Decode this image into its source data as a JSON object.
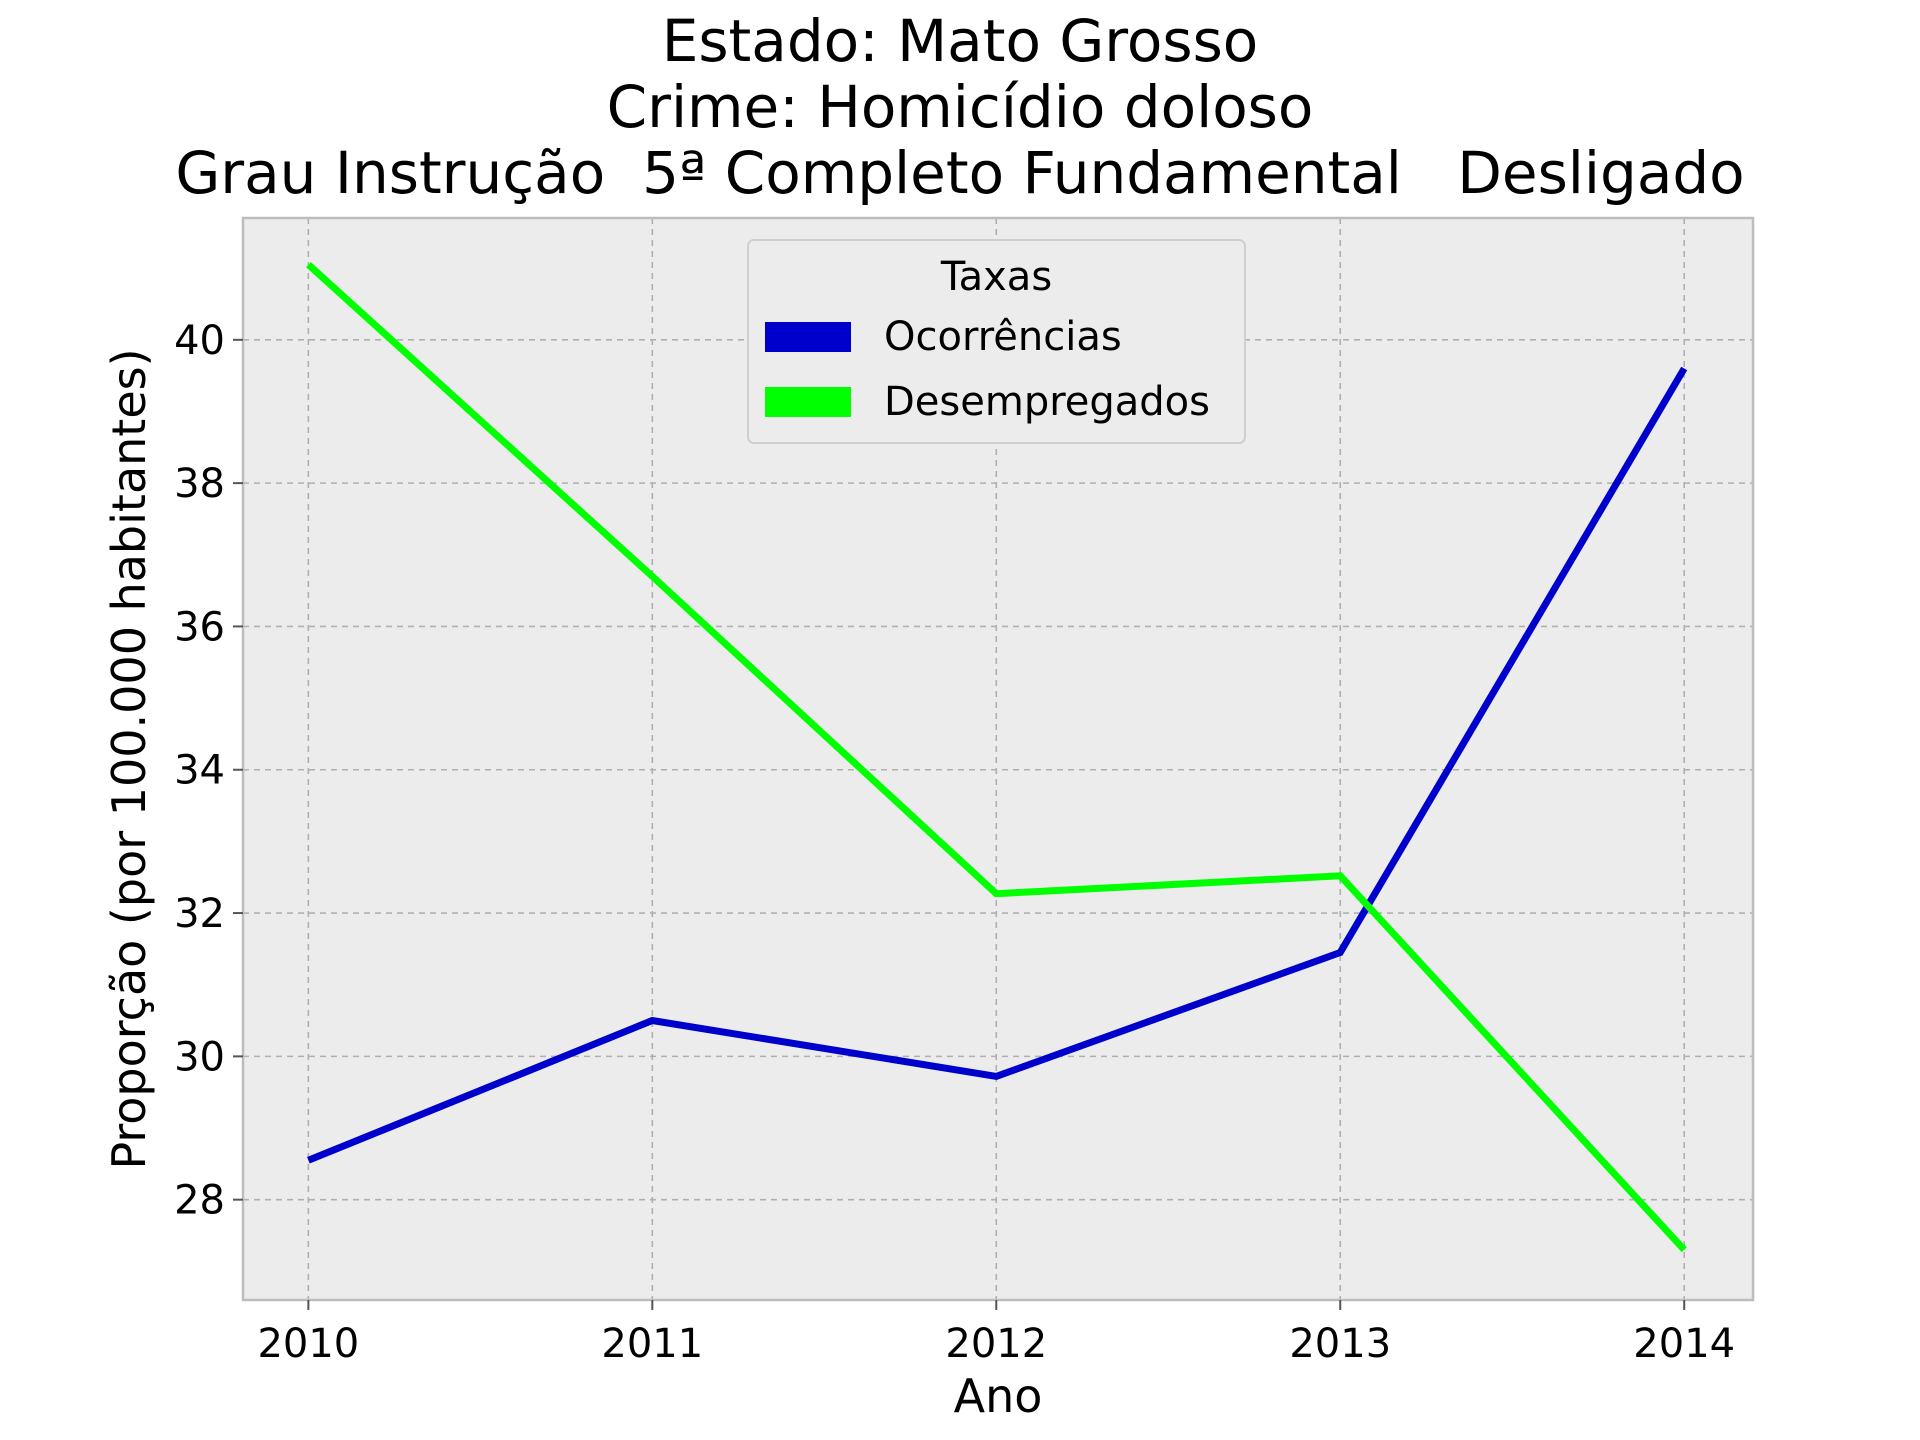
{
  "chart_data": {
    "type": "line",
    "title_lines": [
      "Estado: Mato Grosso",
      "Crime: Homicídio doloso",
      "Grau Instrução  5ª Completo Fundamental   Desligado"
    ],
    "xlabel": "Ano",
    "ylabel": "Proporção (por 100.000 habitantes)",
    "x": [
      2010,
      2011,
      2012,
      2013,
      2014
    ],
    "x_tick_labels": [
      "2010",
      "2011",
      "2012",
      "2013",
      "2014"
    ],
    "xlim": [
      2009.81,
      2014.2
    ],
    "y_ticks": [
      28,
      30,
      32,
      34,
      36,
      38,
      40
    ],
    "y_tick_labels": [
      "28",
      "30",
      "32",
      "34",
      "36",
      "38",
      "40"
    ],
    "ylim": [
      26.6,
      41.7
    ],
    "grid": true,
    "legend": {
      "title": "Taxas",
      "placement": "top-center"
    },
    "series": [
      {
        "name": "Ocorrências",
        "color": "#0000cc",
        "values": [
          28.55,
          30.5,
          29.72,
          31.45,
          39.6
        ]
      },
      {
        "name": "Desempregados",
        "color": "#00ff00",
        "values": [
          41.05,
          36.7,
          32.27,
          32.52,
          27.3
        ]
      }
    ],
    "style": {
      "plot_background": "#ececec",
      "grid_color": "#b0b0b0",
      "frame_color": "#bdbdbd"
    }
  }
}
